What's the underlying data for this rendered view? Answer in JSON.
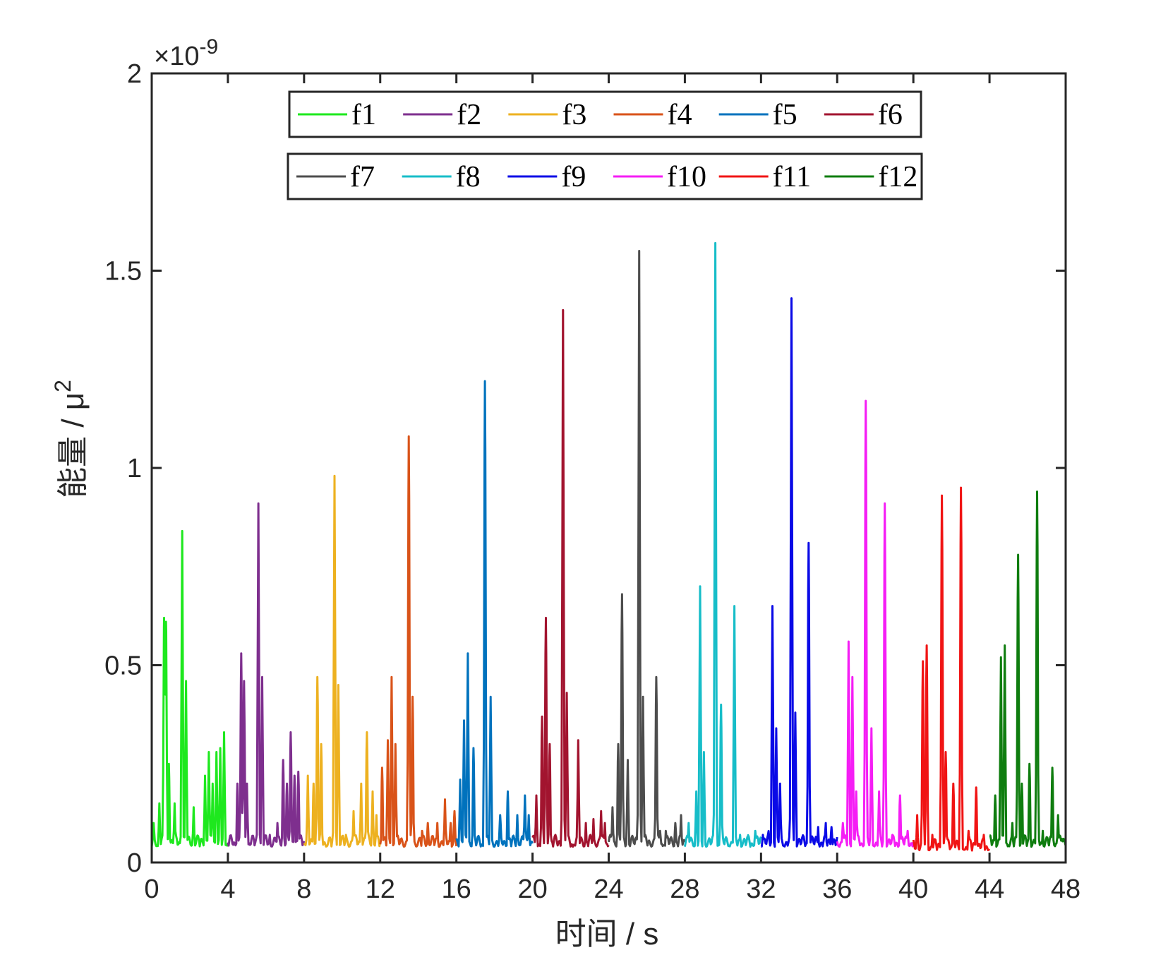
{
  "chart_data": {
    "type": "line",
    "xlabel": "时间 / s",
    "ylabel": "能量 / μ",
    "ylabel_sup": "2",
    "exponent_label": "×10",
    "exponent_power": "-9",
    "xlim": [
      0,
      48
    ],
    "ylim": [
      0,
      2
    ],
    "x_ticks": [
      0,
      4,
      8,
      12,
      16,
      20,
      24,
      28,
      32,
      36,
      40,
      44,
      48
    ],
    "x_tick_labels": [
      "0",
      "4",
      "8",
      "12",
      "16",
      "20",
      "24",
      "28",
      "32",
      "36",
      "40",
      "44",
      "48"
    ],
    "y_ticks": [
      0,
      0.5,
      1,
      1.5,
      2
    ],
    "y_tick_labels": [
      "0",
      "0.5",
      "1",
      "1.5",
      "2"
    ],
    "grid": false,
    "legend_placement": "top-center, two rows",
    "series": [
      {
        "name": "f1",
        "color": "#1ee81e",
        "x_range": [
          0,
          4
        ],
        "base": 0.04,
        "peaks": [
          [
            0.1,
            0.1
          ],
          [
            0.4,
            0.15
          ],
          [
            0.65,
            0.62
          ],
          [
            0.75,
            0.61
          ],
          [
            0.9,
            0.25
          ],
          [
            1.2,
            0.15
          ],
          [
            1.6,
            0.84
          ],
          [
            1.8,
            0.46
          ],
          [
            2.2,
            0.14
          ],
          [
            2.8,
            0.22
          ],
          [
            3.0,
            0.28
          ],
          [
            3.2,
            0.2
          ],
          [
            3.4,
            0.28
          ],
          [
            3.6,
            0.29
          ],
          [
            3.8,
            0.33
          ]
        ]
      },
      {
        "name": "f2",
        "color": "#7e2f8e",
        "x_range": [
          4,
          8
        ],
        "base": 0.04,
        "peaks": [
          [
            4.5,
            0.2
          ],
          [
            4.7,
            0.53
          ],
          [
            4.85,
            0.46
          ],
          [
            5.0,
            0.2
          ],
          [
            5.6,
            0.91
          ],
          [
            5.8,
            0.47
          ],
          [
            6.2,
            0.07
          ],
          [
            6.6,
            0.1
          ],
          [
            6.9,
            0.26
          ],
          [
            7.1,
            0.2
          ],
          [
            7.3,
            0.33
          ],
          [
            7.5,
            0.22
          ],
          [
            7.7,
            0.23
          ]
        ]
      },
      {
        "name": "f3",
        "color": "#edb120",
        "x_range": [
          8,
          12
        ],
        "base": 0.04,
        "peaks": [
          [
            8.2,
            0.22
          ],
          [
            8.5,
            0.2
          ],
          [
            8.7,
            0.47
          ],
          [
            8.9,
            0.3
          ],
          [
            9.6,
            0.98
          ],
          [
            9.8,
            0.45
          ],
          [
            10.2,
            0.07
          ],
          [
            10.6,
            0.13
          ],
          [
            11.0,
            0.2
          ],
          [
            11.3,
            0.33
          ],
          [
            11.6,
            0.18
          ],
          [
            11.8,
            0.12
          ]
        ]
      },
      {
        "name": "f4",
        "color": "#d95319",
        "x_range": [
          12,
          16
        ],
        "base": 0.04,
        "peaks": [
          [
            12.1,
            0.24
          ],
          [
            12.4,
            0.31
          ],
          [
            12.6,
            0.47
          ],
          [
            12.8,
            0.3
          ],
          [
            13.5,
            1.08
          ],
          [
            13.7,
            0.42
          ],
          [
            14.2,
            0.08
          ],
          [
            14.5,
            0.1
          ],
          [
            15.0,
            0.1
          ],
          [
            15.4,
            0.16
          ],
          [
            15.7,
            0.1
          ],
          [
            15.9,
            0.13
          ]
        ]
      },
      {
        "name": "f5",
        "color": "#0072bd",
        "x_range": [
          16,
          20
        ],
        "base": 0.04,
        "peaks": [
          [
            16.2,
            0.21
          ],
          [
            16.4,
            0.36
          ],
          [
            16.6,
            0.53
          ],
          [
            16.9,
            0.29
          ],
          [
            17.5,
            1.22
          ],
          [
            17.8,
            0.42
          ],
          [
            18.3,
            0.12
          ],
          [
            18.7,
            0.18
          ],
          [
            19.2,
            0.12
          ],
          [
            19.6,
            0.17
          ],
          [
            19.8,
            0.12
          ]
        ]
      },
      {
        "name": "f6",
        "color": "#a2142f",
        "x_range": [
          20,
          24
        ],
        "base": 0.04,
        "peaks": [
          [
            20.2,
            0.17
          ],
          [
            20.5,
            0.37
          ],
          [
            20.7,
            0.62
          ],
          [
            20.9,
            0.3
          ],
          [
            21.6,
            1.4
          ],
          [
            21.8,
            0.43
          ],
          [
            22.4,
            0.31
          ],
          [
            22.8,
            0.1
          ],
          [
            23.2,
            0.11
          ],
          [
            23.6,
            0.13
          ],
          [
            23.8,
            0.1
          ]
        ]
      },
      {
        "name": "f7",
        "color": "#4d4d4d",
        "x_range": [
          24,
          28
        ],
        "base": 0.04,
        "peaks": [
          [
            24.2,
            0.14
          ],
          [
            24.5,
            0.3
          ],
          [
            24.7,
            0.68
          ],
          [
            25.0,
            0.26
          ],
          [
            25.6,
            1.55
          ],
          [
            25.8,
            0.42
          ],
          [
            26.5,
            0.47
          ],
          [
            26.7,
            0.08
          ],
          [
            27.0,
            0.08
          ],
          [
            27.5,
            0.1
          ],
          [
            27.8,
            0.12
          ]
        ]
      },
      {
        "name": "f8",
        "color": "#17bdc8",
        "x_range": [
          28,
          32
        ],
        "base": 0.04,
        "peaks": [
          [
            28.2,
            0.1
          ],
          [
            28.6,
            0.18
          ],
          [
            28.8,
            0.7
          ],
          [
            29.0,
            0.28
          ],
          [
            29.6,
            1.57
          ],
          [
            29.9,
            0.4
          ],
          [
            30.6,
            0.65
          ],
          [
            30.9,
            0.07
          ],
          [
            31.3,
            0.06
          ],
          [
            31.7,
            0.08
          ]
        ]
      },
      {
        "name": "f9",
        "color": "#0a0ae6",
        "x_range": [
          32,
          36
        ],
        "base": 0.04,
        "peaks": [
          [
            32.1,
            0.07
          ],
          [
            32.4,
            0.08
          ],
          [
            32.6,
            0.65
          ],
          [
            32.8,
            0.34
          ],
          [
            33.0,
            0.2
          ],
          [
            33.6,
            1.43
          ],
          [
            33.8,
            0.38
          ],
          [
            34.5,
            0.81
          ],
          [
            35.0,
            0.09
          ],
          [
            35.4,
            0.1
          ],
          [
            35.7,
            0.09
          ]
        ]
      },
      {
        "name": "f10",
        "color": "#f51ef5",
        "x_range": [
          36,
          40
        ],
        "base": 0.04,
        "peaks": [
          [
            36.3,
            0.1
          ],
          [
            36.6,
            0.56
          ],
          [
            36.8,
            0.47
          ],
          [
            37.0,
            0.18
          ],
          [
            37.5,
            1.17
          ],
          [
            37.8,
            0.34
          ],
          [
            38.2,
            0.18
          ],
          [
            38.5,
            0.91
          ],
          [
            38.9,
            0.07
          ],
          [
            39.3,
            0.17
          ],
          [
            39.7,
            0.08
          ]
        ]
      },
      {
        "name": "f11",
        "color": "#f01414",
        "x_range": [
          40,
          44
        ],
        "base": 0.03,
        "peaks": [
          [
            40.2,
            0.12
          ],
          [
            40.5,
            0.51
          ],
          [
            40.7,
            0.55
          ],
          [
            41.0,
            0.07
          ],
          [
            41.5,
            0.93
          ],
          [
            41.7,
            0.28
          ],
          [
            42.1,
            0.2
          ],
          [
            42.5,
            0.95
          ],
          [
            42.9,
            0.08
          ],
          [
            43.3,
            0.19
          ],
          [
            43.7,
            0.07
          ]
        ]
      },
      {
        "name": "f12",
        "color": "#0f7d0f",
        "x_range": [
          44,
          48
        ],
        "base": 0.04,
        "peaks": [
          [
            44.3,
            0.17
          ],
          [
            44.6,
            0.52
          ],
          [
            44.8,
            0.55
          ],
          [
            45.2,
            0.1
          ],
          [
            45.5,
            0.78
          ],
          [
            45.7,
            0.2
          ],
          [
            46.1,
            0.25
          ],
          [
            46.5,
            0.94
          ],
          [
            46.8,
            0.08
          ],
          [
            47.3,
            0.24
          ],
          [
            47.6,
            0.12
          ],
          [
            47.8,
            0.06
          ]
        ]
      }
    ]
  }
}
